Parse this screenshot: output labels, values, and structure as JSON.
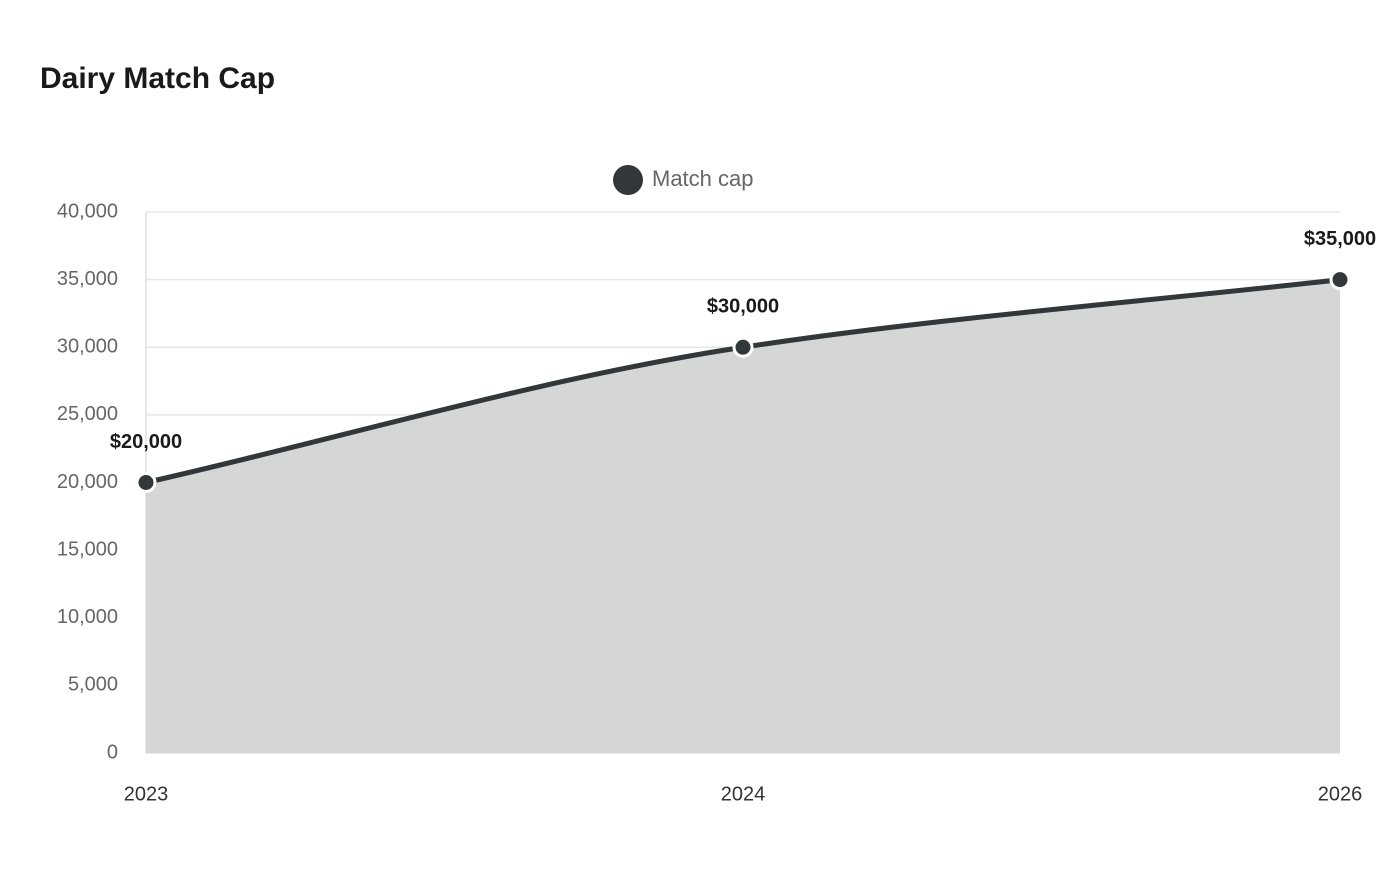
{
  "chart_data": {
    "type": "area",
    "title": "Dairy Match Cap",
    "categories": [
      "2023",
      "2024",
      "2026"
    ],
    "series": [
      {
        "name": "Match cap",
        "color": "#323739",
        "fill": "#d5d6d6",
        "values": [
          20000,
          30000,
          35000
        ],
        "value_labels": [
          "$20,000",
          "$30,000",
          "$35,000"
        ]
      }
    ],
    "ylim": [
      0,
      40000
    ],
    "yticks": [
      0,
      {
        "value": 5000,
        "label": "5,000"
      },
      {
        "value": 10000,
        "label": "10,000"
      },
      {
        "value": 15000,
        "label": "15,000"
      },
      {
        "value": 20000,
        "label": "20,000"
      },
      {
        "value": 25000,
        "label": "25,000"
      },
      {
        "value": 30000,
        "label": "30,000"
      },
      {
        "value": 35000,
        "label": "35,000"
      },
      {
        "value": 40000,
        "label": "40,000"
      }
    ],
    "grid": true,
    "legend": "top"
  }
}
